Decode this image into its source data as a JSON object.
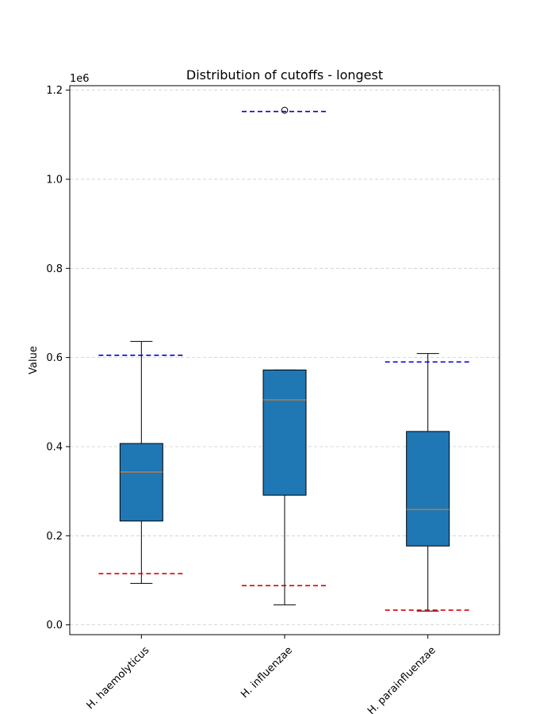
{
  "chart_data": {
    "type": "box",
    "title": "Distribution of cutoffs - longest",
    "ylabel": "Value",
    "xlabel": "",
    "y_offset_label": "1e6",
    "y_scale_factor": 1000000,
    "ylim": [
      -22000,
      1210000
    ],
    "yticks": [
      0,
      200000,
      400000,
      600000,
      800000,
      1000000,
      1200000
    ],
    "ytick_labels": [
      "0.0",
      "0.2",
      "0.4",
      "0.6",
      "0.8",
      "1.0",
      "1.2"
    ],
    "grid": "y-dashed",
    "box_color": "#1f77b4",
    "median_color": "#ff7f0e",
    "upper_line_color": "#0000cc",
    "lower_line_color": "#dd0000",
    "categories": [
      "H. haemolyticus",
      "H. influenzae",
      "H. parainfluenzae"
    ],
    "boxes": [
      {
        "name": "H. haemolyticus",
        "whisker_low": 93000,
        "q1": 233000,
        "median": 343000,
        "q3": 407000,
        "whisker_high": 636000,
        "outliers": [],
        "upper_cutoff": 605000,
        "lower_cutoff": 115000
      },
      {
        "name": "H. influenzae",
        "whisker_low": 45000,
        "q1": 291000,
        "median": 505000,
        "q3": 572000,
        "whisker_high": 572000,
        "outliers": [
          1155000
        ],
        "upper_cutoff": 1152000,
        "lower_cutoff": 88000
      },
      {
        "name": "H. parainfluenzae",
        "whisker_low": 31000,
        "q1": 177000,
        "median": 259000,
        "q3": 434000,
        "whisker_high": 609000,
        "outliers": [],
        "upper_cutoff": 590000,
        "lower_cutoff": 33000
      }
    ]
  }
}
